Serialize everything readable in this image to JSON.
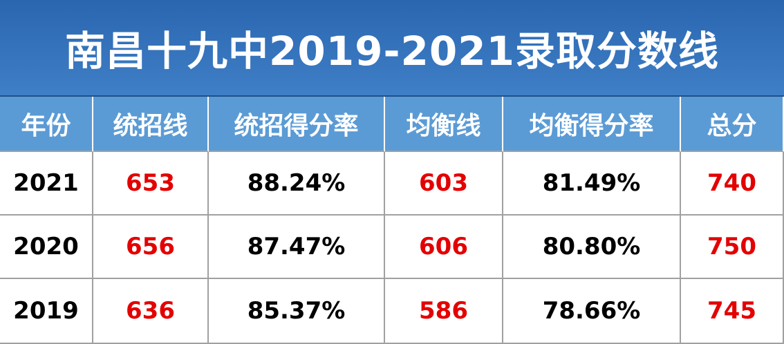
{
  "title": "南昌十九中2019-2021录取分数线",
  "table": {
    "header": [
      "年份",
      "统招线",
      "统招得分率",
      "均衡线",
      "均衡得分率",
      "总分"
    ],
    "rows": [
      [
        "2021",
        "653",
        "88.24%",
        "603",
        "81.49%",
        "740"
      ],
      [
        "2020",
        "656",
        "87.47%",
        "606",
        "80.80%",
        "750"
      ],
      [
        "2019",
        "636",
        "85.37%",
        "586",
        "78.66%",
        "745"
      ]
    ]
  }
}
